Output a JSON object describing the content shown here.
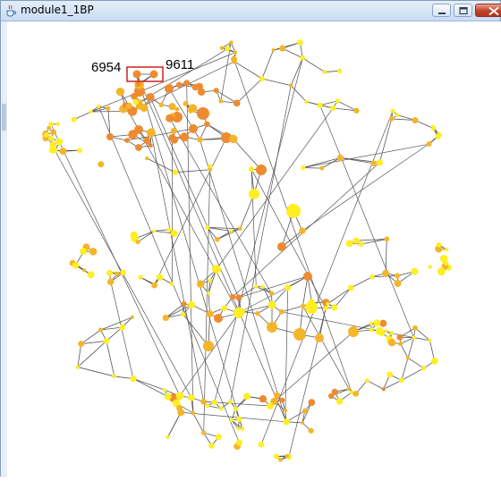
{
  "window": {
    "title": "module1_1BP",
    "icon": "java-cup-icon",
    "controls": [
      {
        "name": "minimize-button",
        "icon": "minimize-icon"
      },
      {
        "name": "maximize-button",
        "icon": "maximize-icon"
      },
      {
        "name": "close-button",
        "icon": "close-icon"
      }
    ]
  },
  "graph": {
    "labels": {
      "left_node": "6954",
      "right_node": "9611"
    },
    "colors": {
      "edge": "#555555",
      "selection": "#cc2222",
      "node_low": "#ffee22",
      "node_mid": "#f5b52a",
      "node_high": "#ee8a30"
    }
  }
}
